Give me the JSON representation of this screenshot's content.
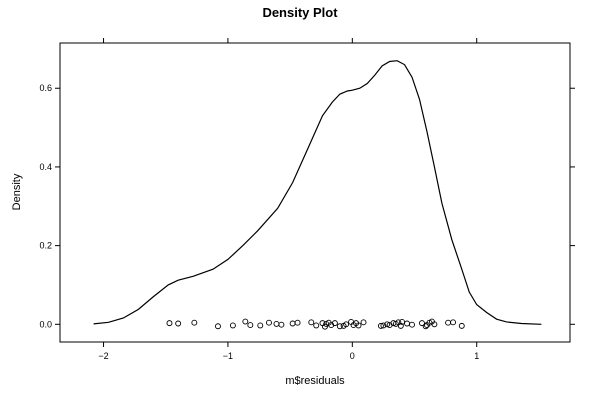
{
  "chart_data": {
    "type": "line",
    "title": "Density Plot",
    "xlabel": "m$residuals",
    "ylabel": "Density",
    "xlim": [
      -2.35,
      1.75
    ],
    "ylim": [
      -0.045,
      0.715
    ],
    "x_ticks": [
      -2,
      -1,
      0,
      1
    ],
    "x_tick_labels": [
      "−2",
      "−1",
      "0",
      "1"
    ],
    "y_ticks": [
      0.0,
      0.2,
      0.4,
      0.6
    ],
    "y_tick_labels": [
      "0.0",
      "0.2",
      "0.4",
      "0.6"
    ],
    "grid": false,
    "series": [
      {
        "style": "line",
        "color": "#000000",
        "x": [
          -2.08,
          -1.96,
          -1.84,
          -1.72,
          -1.6,
          -1.48,
          -1.4,
          -1.28,
          -1.12,
          -1.0,
          -0.88,
          -0.76,
          -0.6,
          -0.48,
          -0.36,
          -0.24,
          -0.16,
          -0.1,
          -0.04,
          0.0,
          0.06,
          0.12,
          0.18,
          0.24,
          0.3,
          0.36,
          0.42,
          0.48,
          0.54,
          0.6,
          0.66,
          0.72,
          0.8,
          0.88,
          0.94,
          1.0,
          1.08,
          1.16,
          1.24,
          1.36,
          1.52
        ],
        "y": [
          0.001,
          0.005,
          0.016,
          0.038,
          0.07,
          0.1,
          0.112,
          0.122,
          0.14,
          0.165,
          0.2,
          0.238,
          0.295,
          0.36,
          0.445,
          0.53,
          0.565,
          0.585,
          0.593,
          0.595,
          0.6,
          0.612,
          0.633,
          0.657,
          0.668,
          0.67,
          0.66,
          0.628,
          0.572,
          0.49,
          0.4,
          0.308,
          0.215,
          0.14,
          0.082,
          0.05,
          0.03,
          0.013,
          0.006,
          0.002,
          0.0
        ]
      },
      {
        "style": "points",
        "color": "#000000",
        "x": [
          -1.47,
          -1.4,
          -1.27,
          -1.08,
          -0.96,
          -0.86,
          -0.82,
          -0.74,
          -0.67,
          -0.61,
          -0.57,
          -0.48,
          -0.44,
          -0.33,
          -0.29,
          -0.24,
          -0.22,
          -0.21,
          -0.19,
          -0.17,
          -0.14,
          -0.1,
          -0.07,
          -0.05,
          -0.01,
          0.01,
          0.03,
          0.05,
          0.09,
          0.23,
          0.25,
          0.28,
          0.3,
          0.33,
          0.35,
          0.37,
          0.39,
          0.4,
          0.44,
          0.48,
          0.56,
          0.59,
          0.6,
          0.62,
          0.64,
          0.66,
          0.77,
          0.81,
          0.88
        ],
        "y": [
          0.003,
          0.002,
          0.004,
          -0.005,
          -0.003,
          0.007,
          -0.002,
          -0.003,
          0.004,
          0.001,
          -0.001,
          0.002,
          0.004,
          0.005,
          -0.003,
          0.003,
          -0.006,
          0.001,
          0.004,
          -0.002,
          0.003,
          -0.005,
          -0.004,
          0.0,
          0.006,
          -0.002,
          0.003,
          -0.003,
          0.005,
          -0.004,
          -0.003,
          0.0,
          -0.002,
          0.003,
          0.001,
          0.005,
          -0.004,
          0.006,
          0.002,
          -0.001,
          0.003,
          -0.005,
          -0.002,
          0.004,
          0.007,
          0.0,
          0.004,
          0.005,
          -0.004
        ]
      }
    ]
  }
}
